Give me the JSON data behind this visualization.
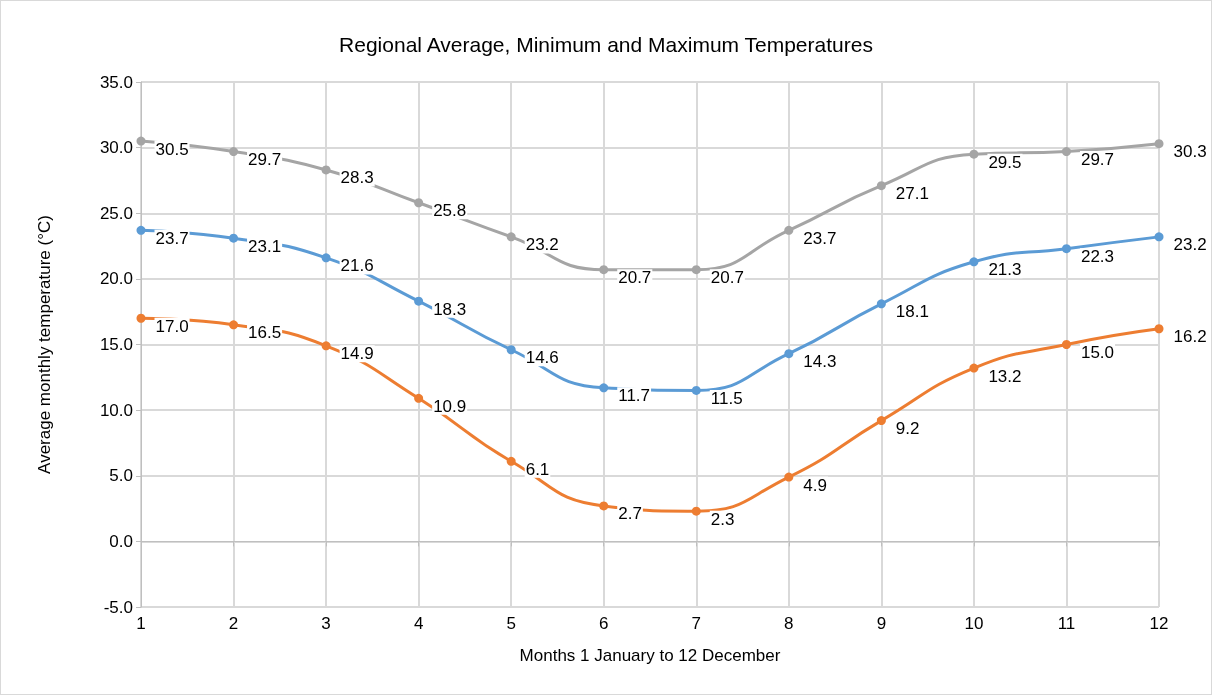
{
  "chart_data": {
    "type": "line",
    "title": "Regional Average, Minimum and Maximum Temperatures",
    "xlabel": "Months 1 January to 12 December",
    "ylabel": "Average monthly temperature (°C)",
    "x": [
      1,
      2,
      3,
      4,
      5,
      6,
      7,
      8,
      9,
      10,
      11,
      12
    ],
    "xlim": [
      1,
      12
    ],
    "xticks": [
      1,
      2,
      3,
      4,
      5,
      6,
      7,
      8,
      9,
      10,
      11,
      12
    ],
    "ylim": [
      -5,
      35
    ],
    "yticks": [
      {
        "value": -5,
        "label": "-5.0"
      },
      {
        "value": 0,
        "label": "0.0"
      },
      {
        "value": 5,
        "label": "5.0"
      },
      {
        "value": 10,
        "label": "10.0"
      },
      {
        "value": 15,
        "label": "15.0"
      },
      {
        "value": 20,
        "label": "20.0"
      },
      {
        "value": 25,
        "label": "25.0"
      },
      {
        "value": 30,
        "label": "30.0"
      },
      {
        "value": 35,
        "label": "35.0"
      }
    ],
    "grid": true,
    "marker": "circle",
    "line_style": "solid",
    "series": [
      {
        "color": "#a5a5a5",
        "values": [
          30.5,
          29.7,
          28.3,
          25.8,
          23.2,
          20.7,
          20.7,
          23.7,
          27.1,
          29.5,
          29.7,
          30.3
        ],
        "value_labels": [
          "30.5",
          "29.7",
          "28.3",
          "25.8",
          "23.2",
          "20.7",
          "20.7",
          "23.7",
          "27.1",
          "29.5",
          "29.7",
          "30.3"
        ]
      },
      {
        "color": "#5b9bd5",
        "values": [
          23.7,
          23.1,
          21.6,
          18.3,
          14.6,
          11.7,
          11.5,
          14.3,
          18.1,
          21.3,
          22.3,
          23.2
        ],
        "value_labels": [
          "23.7",
          "23.1",
          "21.6",
          "18.3",
          "14.6",
          "11.7",
          "11.5",
          "14.3",
          "18.1",
          "21.3",
          "22.3",
          "23.2"
        ]
      },
      {
        "color": "#ed7d31",
        "values": [
          17.0,
          16.5,
          14.9,
          10.9,
          6.1,
          2.7,
          2.3,
          4.9,
          9.2,
          13.2,
          15.0,
          16.2
        ],
        "value_labels": [
          "17.0",
          "16.5",
          "14.9",
          "10.9",
          "6.1",
          "2.7",
          "2.3",
          "4.9",
          "9.2",
          "13.2",
          "15.0",
          "16.2"
        ]
      }
    ]
  }
}
